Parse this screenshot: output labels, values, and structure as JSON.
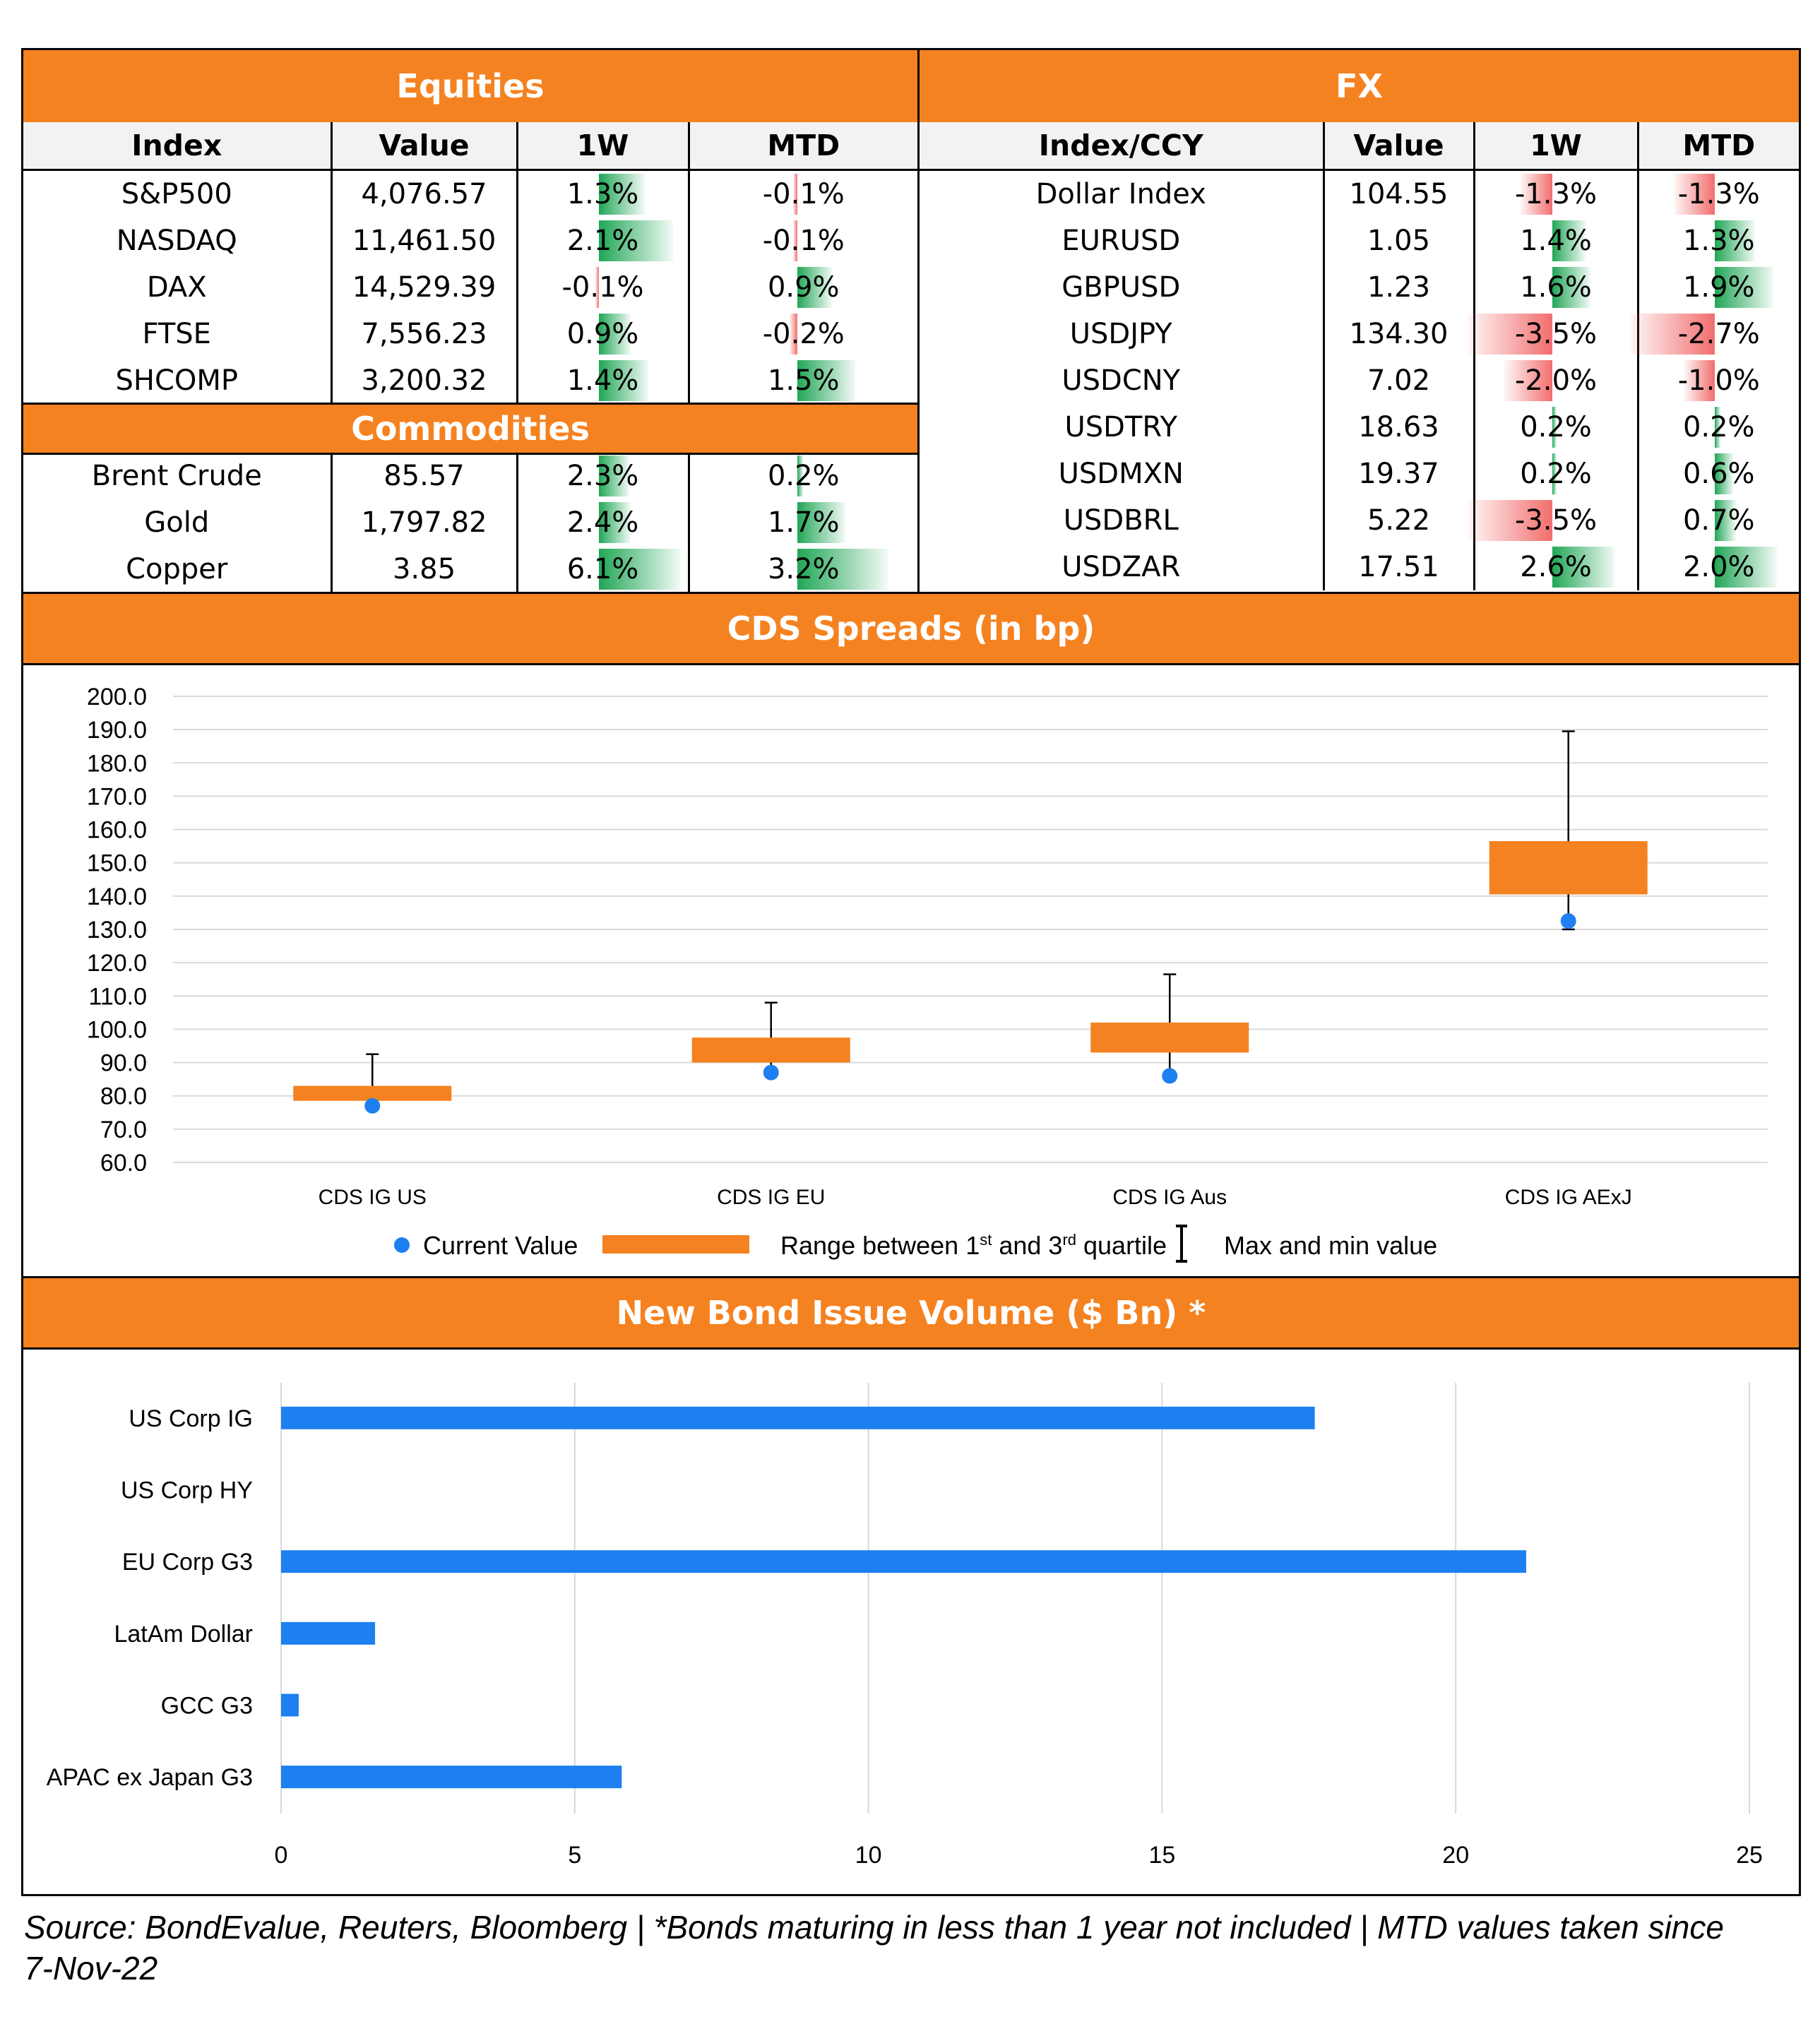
{
  "equities": {
    "title": "Equities",
    "headers": [
      "Index",
      "Value",
      "1W",
      "MTD"
    ],
    "rows": [
      {
        "name": "S&P500",
        "value": "4,076.57",
        "w1": "1.3%",
        "mtd": "-0.1%",
        "w1_num": 1.3,
        "mtd_num": -0.1
      },
      {
        "name": "NASDAQ",
        "value": "11,461.50",
        "w1": "2.1%",
        "mtd": "-0.1%",
        "w1_num": 2.1,
        "mtd_num": -0.1
      },
      {
        "name": "DAX",
        "value": "14,529.39",
        "w1": "-0.1%",
        "mtd": "0.9%",
        "w1_num": -0.1,
        "mtd_num": 0.9
      },
      {
        "name": "FTSE",
        "value": "7,556.23",
        "w1": "0.9%",
        "mtd": "-0.2%",
        "w1_num": 0.9,
        "mtd_num": -0.2
      },
      {
        "name": "SHCOMP",
        "value": "3,200.32",
        "w1": "1.4%",
        "mtd": "1.5%",
        "w1_num": 1.4,
        "mtd_num": 1.5
      }
    ]
  },
  "commodities": {
    "title": "Commodities",
    "rows": [
      {
        "name": "Brent Crude",
        "value": "85.57",
        "w1": "2.3%",
        "mtd": "0.2%",
        "w1_num": 2.3,
        "mtd_num": 0.2
      },
      {
        "name": "Gold",
        "value": "1,797.82",
        "w1": "2.4%",
        "mtd": "1.7%",
        "w1_num": 2.4,
        "mtd_num": 1.7
      },
      {
        "name": "Copper",
        "value": "3.85",
        "w1": "6.1%",
        "mtd": "3.2%",
        "w1_num": 6.1,
        "mtd_num": 3.2
      }
    ]
  },
  "fx": {
    "title": "FX",
    "headers": [
      "Index/CCY",
      "Value",
      "1W",
      "MTD"
    ],
    "rows": [
      {
        "name": "Dollar Index",
        "value": "104.55",
        "w1": "-1.3%",
        "mtd": "-1.3%",
        "w1_num": -1.3,
        "mtd_num": -1.3
      },
      {
        "name": "EURUSD",
        "value": "1.05",
        "w1": "1.4%",
        "mtd": "1.3%",
        "w1_num": 1.4,
        "mtd_num": 1.3
      },
      {
        "name": "GBPUSD",
        "value": "1.23",
        "w1": "1.6%",
        "mtd": "1.9%",
        "w1_num": 1.6,
        "mtd_num": 1.9
      },
      {
        "name": "USDJPY",
        "value": "134.30",
        "w1": "-3.5%",
        "mtd": "-2.7%",
        "w1_num": -3.5,
        "mtd_num": -2.7
      },
      {
        "name": "USDCNY",
        "value": "7.02",
        "w1": "-2.0%",
        "mtd": "-1.0%",
        "w1_num": -2.0,
        "mtd_num": -1.0
      },
      {
        "name": "USDTRY",
        "value": "18.63",
        "w1": "0.2%",
        "mtd": "0.2%",
        "w1_num": 0.2,
        "mtd_num": 0.2
      },
      {
        "name": "USDMXN",
        "value": "19.37",
        "w1": "0.2%",
        "mtd": "0.6%",
        "w1_num": 0.2,
        "mtd_num": 0.6
      },
      {
        "name": "USDBRL",
        "value": "5.22",
        "w1": "-3.5%",
        "mtd": "0.7%",
        "w1_num": -3.5,
        "mtd_num": 0.7
      },
      {
        "name": "USDZAR",
        "value": "17.51",
        "w1": "2.6%",
        "mtd": "2.0%",
        "w1_num": 2.6,
        "mtd_num": 2.0
      }
    ]
  },
  "cds": {
    "title": "CDS Spreads (in bp)",
    "legend": {
      "current": "Current Value",
      "range_prefix": "Range between 1",
      "range_sup1": "st",
      "range_mid": " and 3",
      "range_sup2": "rd",
      "range_suffix": " quartile",
      "maxmin": "Max and min value"
    }
  },
  "bonds": {
    "title": "New Bond Issue Volume ($ Bn) *"
  },
  "colors": {
    "orange": "#F58220",
    "blue": "#1E7FF0",
    "green": "#21A656",
    "red": "#F26D6D"
  },
  "chart_data": [
    {
      "type": "box",
      "title": "CDS Spreads (in bp)",
      "categories": [
        "CDS IG US",
        "CDS IG EU",
        "CDS IG Aus",
        "CDS IG AExJ"
      ],
      "q1": [
        78.5,
        90.0,
        93.0,
        140.5
      ],
      "q3": [
        83.0,
        97.5,
        102.0,
        156.5
      ],
      "max": [
        92.5,
        108.0,
        116.5,
        189.5
      ],
      "min": [
        77.0,
        87.0,
        86.0,
        130.0
      ],
      "current": [
        77.0,
        87.0,
        86.0,
        132.5
      ],
      "ylim": [
        60,
        200
      ],
      "yticks": [
        "60.0",
        "70.0",
        "80.0",
        "90.0",
        "100.0",
        "110.0",
        "120.0",
        "130.0",
        "140.0",
        "150.0",
        "160.0",
        "170.0",
        "180.0",
        "190.0",
        "200.0"
      ],
      "grid": true,
      "legend_position": "bottom"
    },
    {
      "type": "bar",
      "orientation": "horizontal",
      "title": "New Bond Issue Volume ($ Bn) *",
      "categories": [
        "US Corp IG",
        "US Corp HY",
        "EU Corp G3",
        "LatAm Dollar",
        "GCC G3",
        "APAC ex Japan G3"
      ],
      "values": [
        17.6,
        0,
        21.2,
        1.6,
        0.3,
        5.8
      ],
      "xlim": [
        0,
        25
      ],
      "xticks": [
        "0",
        "5",
        "10",
        "15",
        "20",
        "25"
      ],
      "grid": true
    }
  ],
  "footer": {
    "source": "Source: BondEvalue, Reuters, Bloomberg | *Bonds maturing in less than 1 year not included | MTD values taken since 7-Nov-22"
  }
}
